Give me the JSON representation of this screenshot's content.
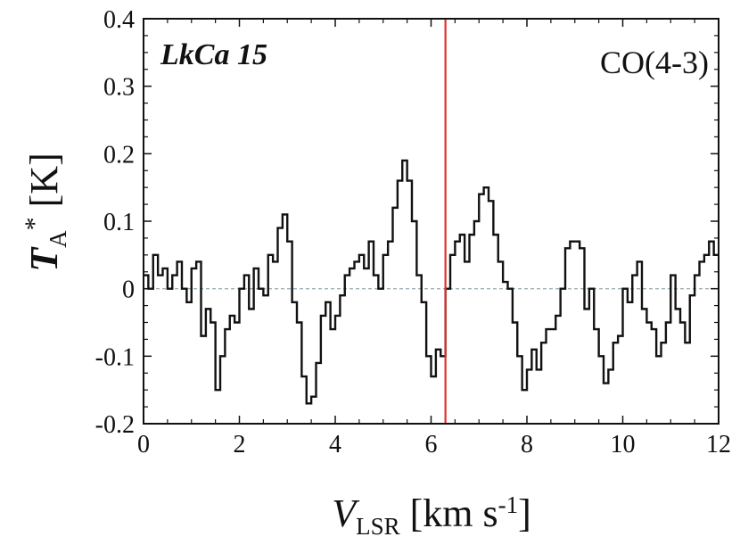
{
  "chart_data": {
    "type": "line",
    "step": true,
    "xlabel": {
      "main": "V",
      "sub": "LSR",
      "unit_pre": " [km s",
      "sup": "-1",
      "unit_post": "]"
    },
    "ylabel": {
      "main": "T",
      "sub": "A",
      "sup": "*",
      "unit": " [K]"
    },
    "xlim": [
      0,
      12
    ],
    "ylim": [
      -0.2,
      0.4
    ],
    "x_ticks": [
      0,
      2,
      4,
      6,
      8,
      10,
      12
    ],
    "x_tick_labels": [
      "0",
      "2",
      "4",
      "6",
      "8",
      "10",
      "12"
    ],
    "y_ticks": [
      -0.2,
      -0.1,
      0,
      0.1,
      0.2,
      0.3,
      0.4
    ],
    "y_tick_labels": [
      "-0.2",
      "-0.1",
      "0",
      "0.1",
      "0.2",
      "0.3",
      "0.4"
    ],
    "annotations": {
      "source": "LkCa 15",
      "line": "CO(4-3)"
    },
    "reference_line": {
      "x": 6.3,
      "color": "#e03030"
    },
    "zero_line": {
      "y": 0,
      "color": "#9fb0b8"
    },
    "series_color": "#111111",
    "x": [
      0.0,
      0.1,
      0.2,
      0.3,
      0.4,
      0.5,
      0.6,
      0.7,
      0.8,
      0.9,
      1.0,
      1.1,
      1.2,
      1.3,
      1.4,
      1.5,
      1.6,
      1.7,
      1.8,
      1.9,
      2.0,
      2.1,
      2.2,
      2.3,
      2.4,
      2.5,
      2.6,
      2.7,
      2.8,
      2.9,
      3.0,
      3.1,
      3.2,
      3.3,
      3.4,
      3.5,
      3.6,
      3.7,
      3.8,
      3.9,
      4.0,
      4.1,
      4.2,
      4.3,
      4.4,
      4.5,
      4.6,
      4.7,
      4.8,
      4.9,
      5.0,
      5.1,
      5.2,
      5.3,
      5.4,
      5.5,
      5.6,
      5.7,
      5.8,
      5.9,
      6.0,
      6.1,
      6.2,
      6.3,
      6.4,
      6.5,
      6.6,
      6.7,
      6.8,
      6.9,
      7.0,
      7.1,
      7.2,
      7.3,
      7.4,
      7.5,
      7.6,
      7.7,
      7.8,
      7.9,
      8.0,
      8.1,
      8.2,
      8.3,
      8.4,
      8.5,
      8.6,
      8.7,
      8.8,
      8.9,
      9.0,
      9.1,
      9.2,
      9.3,
      9.4,
      9.5,
      9.6,
      9.7,
      9.8,
      9.9,
      10.0,
      10.1,
      10.2,
      10.3,
      10.4,
      10.5,
      10.6,
      10.7,
      10.8,
      10.9,
      11.0,
      11.1,
      11.2,
      11.3,
      11.4,
      11.5,
      11.6,
      11.7,
      11.8,
      11.9
    ],
    "y": [
      0.02,
      0.0,
      0.05,
      0.02,
      0.03,
      0.0,
      0.02,
      0.04,
      0.0,
      -0.02,
      0.03,
      0.04,
      -0.07,
      -0.03,
      -0.05,
      -0.15,
      -0.1,
      -0.06,
      -0.04,
      -0.05,
      0.0,
      0.02,
      -0.03,
      0.03,
      0.0,
      -0.01,
      0.05,
      0.04,
      0.09,
      0.11,
      0.07,
      -0.02,
      -0.05,
      -0.13,
      -0.17,
      -0.16,
      -0.11,
      -0.04,
      -0.02,
      -0.06,
      -0.04,
      -0.01,
      0.02,
      0.03,
      0.04,
      0.05,
      0.03,
      0.07,
      0.02,
      0.0,
      0.05,
      0.07,
      0.12,
      0.16,
      0.19,
      0.16,
      0.1,
      0.02,
      -0.02,
      -0.1,
      -0.13,
      -0.09,
      -0.1,
      0.0,
      0.05,
      0.07,
      0.08,
      0.04,
      0.08,
      0.1,
      0.14,
      0.15,
      0.13,
      0.08,
      0.04,
      0.01,
      0.0,
      -0.05,
      -0.1,
      -0.15,
      -0.12,
      -0.09,
      -0.12,
      -0.08,
      -0.06,
      -0.06,
      -0.04,
      0.0,
      0.06,
      0.07,
      0.07,
      0.06,
      -0.03,
      0.0,
      -0.06,
      -0.1,
      -0.14,
      -0.12,
      -0.08,
      -0.07,
      0.0,
      -0.02,
      0.02,
      0.04,
      -0.03,
      -0.05,
      -0.06,
      -0.1,
      -0.08,
      -0.05,
      0.02,
      -0.03,
      -0.05,
      -0.08,
      -0.01,
      0.02,
      0.04,
      0.05,
      0.07,
      0.05
    ]
  }
}
